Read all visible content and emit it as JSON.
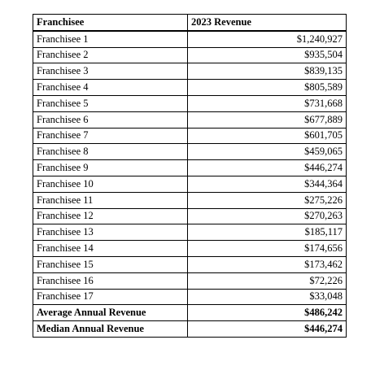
{
  "table": {
    "headers": {
      "col1": "Franchisee",
      "col2": "2023 Revenue"
    },
    "rows": [
      {
        "name": "Franchisee 1",
        "revenue": "$1,240,927"
      },
      {
        "name": "Franchisee 2",
        "revenue": "$935,504"
      },
      {
        "name": "Franchisee 3",
        "revenue": "$839,135"
      },
      {
        "name": "Franchisee 4",
        "revenue": "$805,589"
      },
      {
        "name": "Franchisee 5",
        "revenue": "$731,668"
      },
      {
        "name": "Franchisee 6",
        "revenue": "$677,889"
      },
      {
        "name": "Franchisee 7",
        "revenue": "$601,705"
      },
      {
        "name": "Franchisee 8",
        "revenue": "$459,065"
      },
      {
        "name": "Franchisee 9",
        "revenue": "$446,274"
      },
      {
        "name": "Franchisee 10",
        "revenue": "$344,364"
      },
      {
        "name": "Franchisee 11",
        "revenue": "$275,226"
      },
      {
        "name": "Franchisee 12",
        "revenue": "$270,263"
      },
      {
        "name": "Franchisee 13",
        "revenue": "$185,117"
      },
      {
        "name": "Franchisee 14",
        "revenue": "$174,656"
      },
      {
        "name": "Franchisee 15",
        "revenue": "$173,462"
      },
      {
        "name": "Franchisee 16",
        "revenue": "$72,226"
      },
      {
        "name": "Franchisee 17",
        "revenue": "$33,048"
      }
    ],
    "summary": [
      {
        "label": "Average Annual Revenue",
        "value": "$486,242"
      },
      {
        "label": "Median Annual Revenue",
        "value": "$446,274"
      }
    ]
  }
}
